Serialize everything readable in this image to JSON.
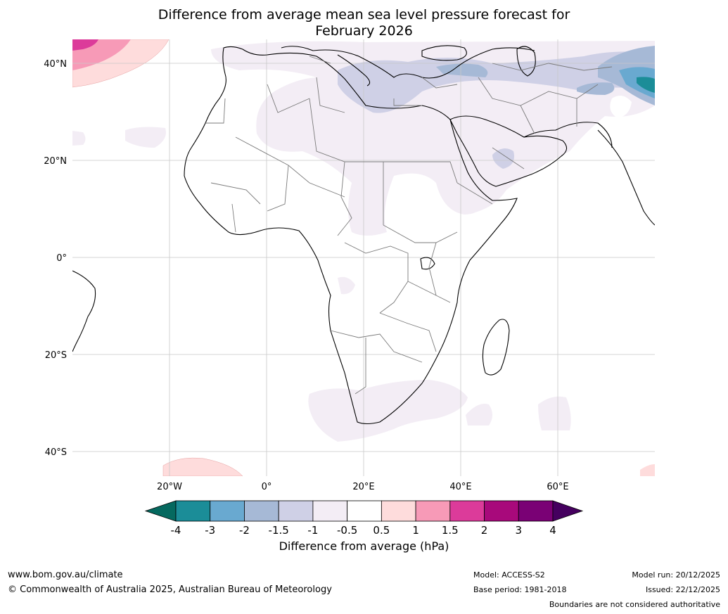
{
  "title": {
    "line1": "Difference from average mean sea level pressure forecast for",
    "line2": "February 2026"
  },
  "axes": {
    "lat_labels": [
      "40°N",
      "20°N",
      "0°",
      "20°S",
      "40°S"
    ],
    "lon_labels": [
      "20°W",
      "0°",
      "20°E",
      "40°E",
      "60°E"
    ]
  },
  "colorbar": {
    "ticks": [
      "-4",
      "-3",
      "-2",
      "-1.5",
      "-1",
      "-0.5",
      "0.5",
      "1",
      "1.5",
      "2",
      "3",
      "4"
    ],
    "colors": [
      "#05695f",
      "#1b8d98",
      "#69a9d0",
      "#a6b9d6",
      "#cfd0e6",
      "#f3edf5",
      "#ffffff",
      "#fedcdc",
      "#f79ab7",
      "#dc3b9a",
      "#a8097b",
      "#7a0175",
      "#45005f"
    ],
    "label": "Difference from average (hPa)"
  },
  "footer": {
    "url": "www.bom.gov.au/climate",
    "copyright": "© Commonwealth of Australia 2025, Australian Bureau of Meteorology",
    "model": "Model: ACCESS-S2",
    "base_period": "Base period: 1981-2018",
    "model_run": "Model run: 20/12/2025",
    "issued": "Issued: 22/12/2025",
    "disclaimer": "Boundaries are not considered authoritative"
  }
}
